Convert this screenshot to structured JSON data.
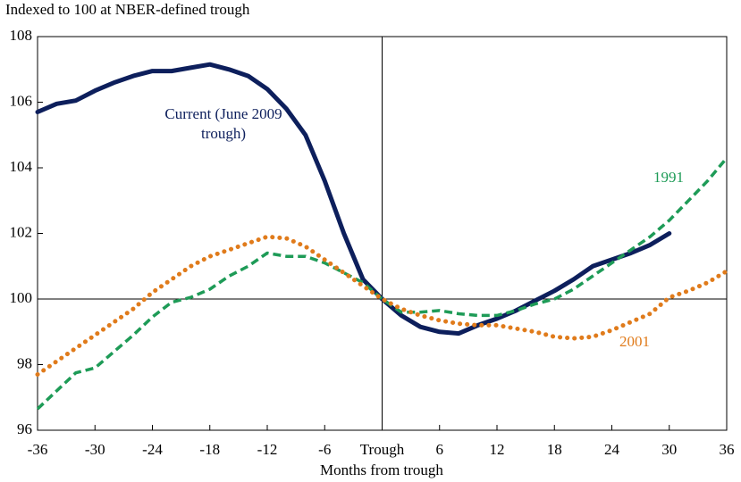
{
  "chart_data": {
    "type": "line",
    "subtitle": "Indexed to 100 at NBER-defined trough",
    "x_label": "Months from trough",
    "x": [
      -36,
      -34,
      -32,
      -30,
      -28,
      -26,
      -24,
      -22,
      -20,
      -18,
      -16,
      -14,
      -12,
      -10,
      -8,
      -6,
      -4,
      -2,
      0,
      2,
      4,
      6,
      8,
      10,
      12,
      14,
      16,
      18,
      20,
      22,
      24,
      26,
      28,
      30,
      32,
      34,
      36
    ],
    "series": [
      {
        "name": "Current (June 2009 trough)",
        "color": "#0d1f5c",
        "style": "solid",
        "values": [
          105.7,
          105.95,
          106.05,
          106.35,
          106.6,
          106.8,
          106.95,
          106.95,
          107.05,
          107.15,
          107.0,
          106.8,
          106.4,
          105.8,
          105.0,
          103.6,
          102.0,
          100.6,
          100,
          99.5,
          99.15,
          99.0,
          98.95,
          99.2,
          99.4,
          99.65,
          99.95,
          100.25,
          100.6,
          101.0,
          101.2,
          101.4,
          101.65,
          102.0,
          null,
          null,
          null
        ]
      },
      {
        "name": "1991",
        "color": "#1e9b57",
        "style": "dashed",
        "values": [
          96.65,
          97.2,
          97.75,
          97.9,
          98.4,
          98.9,
          99.45,
          99.9,
          100.05,
          100.3,
          100.7,
          101.0,
          101.4,
          101.3,
          101.3,
          101.1,
          100.8,
          100.5,
          100,
          99.6,
          99.6,
          99.65,
          99.55,
          99.5,
          99.5,
          99.65,
          99.85,
          100.0,
          100.3,
          100.7,
          101.1,
          101.5,
          101.9,
          102.4,
          103.0,
          103.6,
          104.3
        ]
      },
      {
        "name": "2001",
        "color": "#e07b1b",
        "style": "dotted",
        "values": [
          97.7,
          98.1,
          98.5,
          98.9,
          99.3,
          99.7,
          100.2,
          100.6,
          101.0,
          101.3,
          101.5,
          101.7,
          101.9,
          101.85,
          101.6,
          101.2,
          100.8,
          100.4,
          100,
          99.7,
          99.5,
          99.35,
          99.25,
          99.2,
          99.2,
          99.1,
          99.0,
          98.85,
          98.8,
          98.85,
          99.05,
          99.3,
          99.55,
          100.05,
          100.25,
          100.5,
          100.85
        ]
      }
    ],
    "xlim": [
      -36,
      36
    ],
    "xticks": [
      -36,
      -30,
      -24,
      -18,
      -12,
      -6,
      {
        "value": 0,
        "label": "Trough"
      },
      6,
      12,
      18,
      24,
      30,
      36
    ],
    "ylim": [
      96,
      108
    ],
    "yticks": [
      96,
      98,
      100,
      102,
      104,
      106,
      108
    ]
  }
}
